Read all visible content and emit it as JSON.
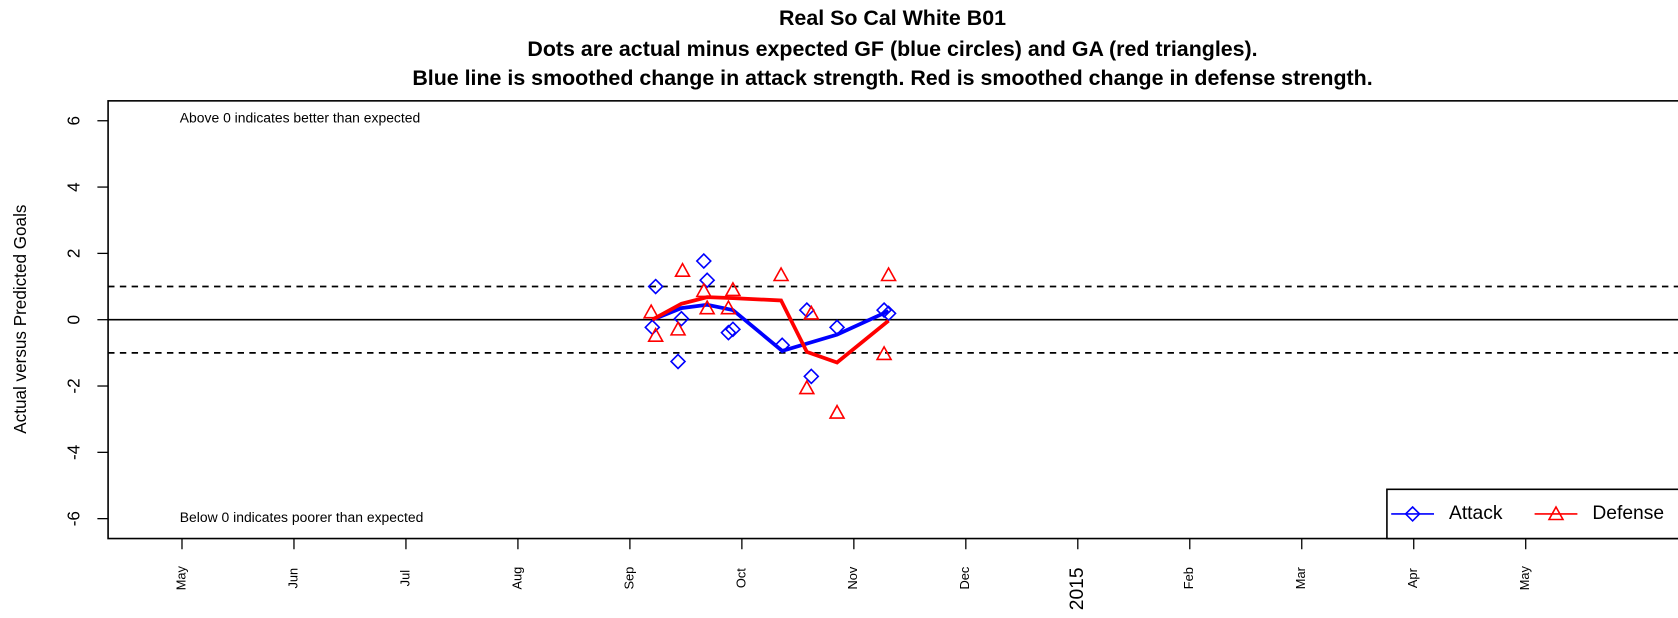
{
  "chart_data": {
    "type": "scatter",
    "title": "Real So Cal White B01",
    "subtitle": [
      "Dots are actual minus expected GF (blue circles) and GA (red triangles).",
      "Blue line is smoothed change in attack strength. Red is smoothed change in defense strength."
    ],
    "y_label": "Actual versus Predicted Goals",
    "annotations": [
      "Above 0 indicates better than expected",
      "Below 0 indicates poorer than expected"
    ],
    "xlim": [
      4.34,
      18.36
    ],
    "ylim": [
      -6.6,
      6.6
    ],
    "xticks": [
      {
        "value": 5,
        "label": "May"
      },
      {
        "value": 6,
        "label": "Jun"
      },
      {
        "value": 7,
        "label": "Jul"
      },
      {
        "value": 8,
        "label": "Aug"
      },
      {
        "value": 9,
        "label": "Sep"
      },
      {
        "value": 10,
        "label": "Oct"
      },
      {
        "value": 11,
        "label": "Nov"
      },
      {
        "value": 12,
        "label": "Dec"
      },
      {
        "value": 13,
        "label": "2015"
      },
      {
        "value": 14,
        "label": "Feb"
      },
      {
        "value": 15,
        "label": "Mar"
      },
      {
        "value": 16,
        "label": "Apr"
      },
      {
        "value": 17,
        "label": "May"
      }
    ],
    "yticks": [
      -6,
      -4,
      -2,
      0,
      2,
      4,
      6
    ],
    "hlines": [
      {
        "value": 0,
        "style": "solid"
      },
      {
        "value": 1,
        "style": "dashed"
      },
      {
        "value": -1,
        "style": "dashed"
      }
    ],
    "legend_position": "bottom-right",
    "series": [
      {
        "name": "Attack",
        "color": "#0000ff",
        "marker": "diamond",
        "x": [
          9.23,
          9.2,
          9.46,
          9.43,
          9.66,
          9.69,
          9.88,
          9.92,
          10.36,
          10.58,
          10.62,
          10.85,
          11.27,
          11.31
        ],
        "values": [
          1.0,
          -0.23,
          0.03,
          -1.26,
          1.77,
          1.19,
          -0.39,
          -0.29,
          -0.77,
          0.29,
          -1.71,
          -0.23,
          0.29,
          0.19
        ],
        "smooth_x": [
          9.2,
          9.46,
          9.69,
          9.92,
          10.36,
          10.85,
          11.31
        ],
        "smooth_values": [
          0,
          0.35,
          0.45,
          0.29,
          -0.94,
          -0.45,
          0.26
        ]
      },
      {
        "name": "Defense",
        "color": "#ff0000",
        "marker": "triangle",
        "x": [
          9.19,
          9.23,
          9.43,
          9.47,
          9.66,
          9.69,
          9.88,
          9.92,
          10.35,
          10.58,
          10.62,
          10.85,
          11.27,
          11.31
        ],
        "values": [
          0.23,
          -0.48,
          -0.29,
          1.48,
          0.87,
          0.35,
          0.35,
          0.9,
          1.35,
          -2.06,
          0.19,
          -2.8,
          -1.03,
          1.35
        ],
        "smooth_x": [
          9.2,
          9.46,
          9.69,
          9.92,
          10.35,
          10.58,
          10.85,
          11.31
        ],
        "smooth_values": [
          0,
          0.48,
          0.68,
          0.65,
          0.58,
          -0.97,
          -1.29,
          -0.03
        ]
      }
    ]
  }
}
